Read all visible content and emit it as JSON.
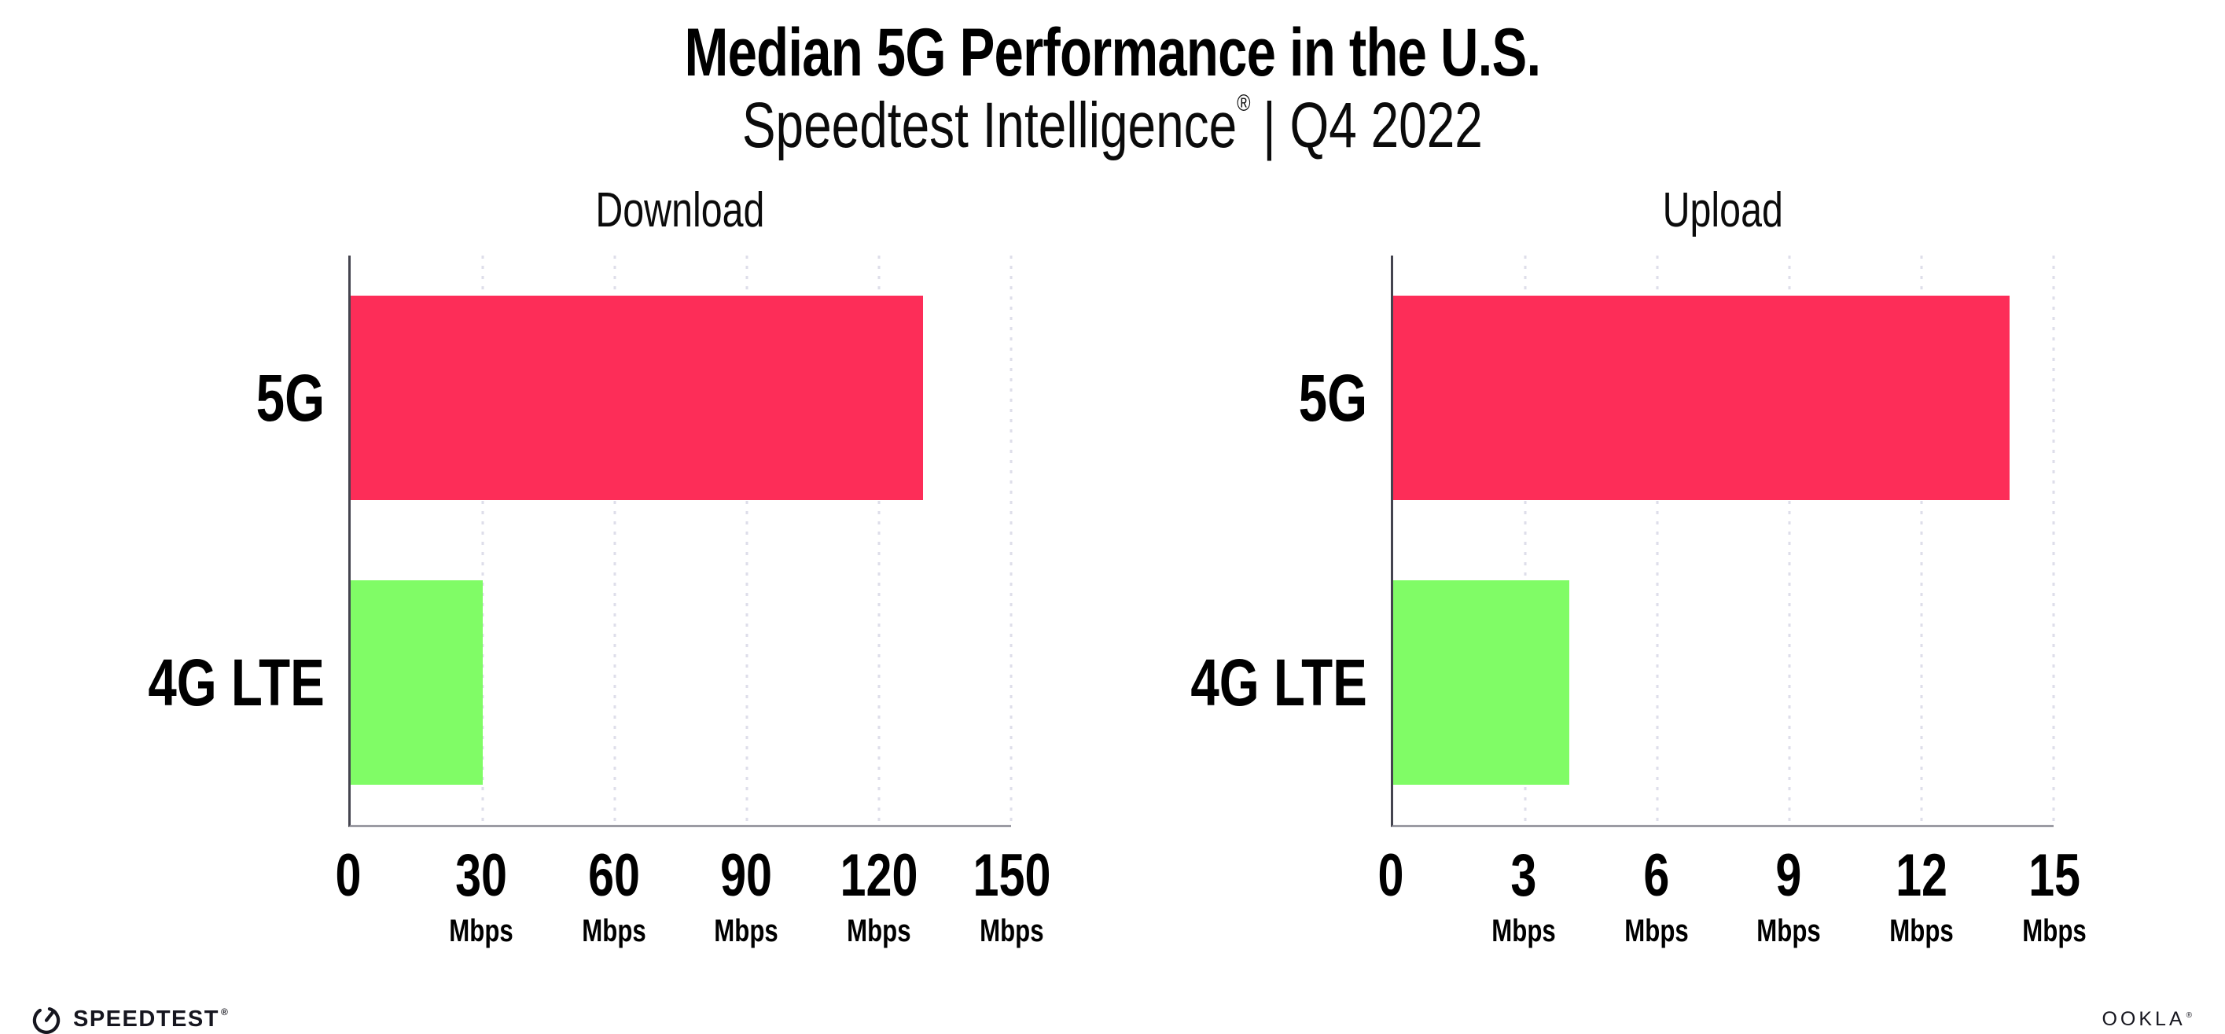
{
  "page": {
    "title": "Median 5G Performance in the U.S.",
    "subtitle": {
      "brand": "Speedtest Intelligence",
      "mark": "®",
      "period": "| Q4 2022"
    }
  },
  "colors": {
    "series": [
      "#FD2D58",
      "#80FC66"
    ],
    "bar_5g": "#FD2D58",
    "bar_4g_lte": "#80FC66",
    "y_axis_line": "#44444F",
    "x_axis_line": "#9B9BA3",
    "gridline": "#DEDEEA",
    "text": "#000000",
    "logo": "#16161F"
  },
  "chart_data": [
    {
      "type": "bar",
      "orientation": "horizontal",
      "title": "Download",
      "categories": [
        "5G",
        "4G LTE"
      ],
      "values": [
        130,
        30
      ],
      "unit": "Mbps",
      "xlim": [
        0,
        150
      ],
      "xticks": [
        0,
        30,
        60,
        90,
        120,
        150
      ],
      "grid": "vertical dotted lines at ticks",
      "legend": "none"
    },
    {
      "type": "bar",
      "orientation": "horizontal",
      "title": "Upload",
      "categories": [
        "5G",
        "4G LTE"
      ],
      "values": [
        14,
        4
      ],
      "unit": "Mbps",
      "xlim": [
        0,
        15
      ],
      "xticks": [
        0,
        3,
        6,
        9,
        12,
        15
      ],
      "grid": "vertical dotted lines at ticks",
      "legend": "none"
    }
  ],
  "footer": {
    "speedtest": {
      "label": "SPEEDTEST",
      "mark": "®",
      "icon": "speedtest-gauge-icon"
    },
    "ookla": {
      "label": "OOKLA",
      "mark": "®"
    }
  }
}
